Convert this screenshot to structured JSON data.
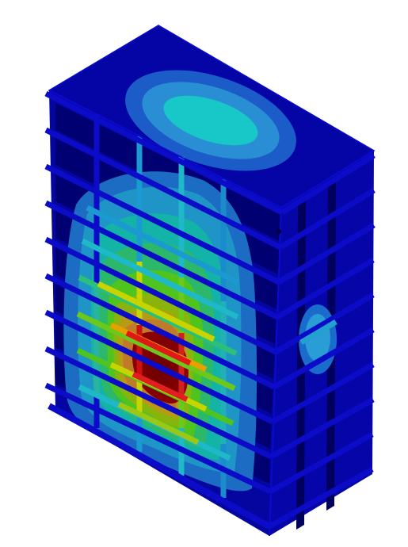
{
  "figure": {
    "subject": "stiffened-box-contour",
    "colormap": [
      "#00007f",
      "#0000d9",
      "#1a3ad0",
      "#2a7ad8",
      "#1fb3cf",
      "#00c8c8",
      "#2bd17a",
      "#4fcc22",
      "#a9d400",
      "#e6e000",
      "#f0a000",
      "#e55a00",
      "#cc0000",
      "#8a0000"
    ],
    "colors": {
      "base_blue": "#0505a6",
      "dark_blue": "#00005c",
      "edge_blue": "#0c0cc8",
      "cyan": "#18c8c8",
      "light_blue": "#1f7fd0",
      "hot_red": "#8a0000"
    }
  }
}
